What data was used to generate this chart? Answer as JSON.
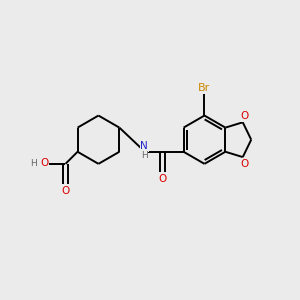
{
  "bg_color": "#ebebeb",
  "bond_color": "#000000",
  "colors": {
    "C": "#000000",
    "N": "#2222cc",
    "O": "#dd0000",
    "Br": "#cc8800",
    "H": "#666666"
  },
  "lw": 1.4,
  "fs": 7.5
}
